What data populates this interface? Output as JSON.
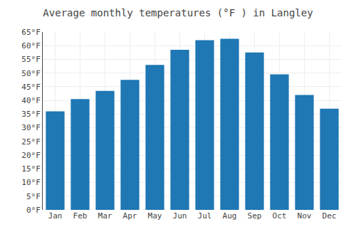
{
  "chart_data": {
    "type": "bar",
    "title": "Average monthly temperatures (°F ) in Langley",
    "categories": [
      "Jan",
      "Feb",
      "Mar",
      "Apr",
      "May",
      "Jun",
      "Jul",
      "Aug",
      "Sep",
      "Oct",
      "Nov",
      "Dec"
    ],
    "values": [
      36,
      40.5,
      43.5,
      47.5,
      53,
      58.5,
      62,
      62.5,
      57.5,
      49.5,
      42,
      37
    ],
    "ylim": [
      0,
      65
    ],
    "yticks": [
      {
        "value": 0,
        "label": "0°F"
      },
      {
        "value": 5,
        "label": "5°F"
      },
      {
        "value": 10,
        "label": "10°F"
      },
      {
        "value": 15,
        "label": "15°F"
      },
      {
        "value": 20,
        "label": "20°F"
      },
      {
        "value": 25,
        "label": "25°F"
      },
      {
        "value": 30,
        "label": "30°F"
      },
      {
        "value": 35,
        "label": "35°F"
      },
      {
        "value": 40,
        "label": "40°F"
      },
      {
        "value": 45,
        "label": "45°F"
      },
      {
        "value": 50,
        "label": "50°F"
      },
      {
        "value": 55,
        "label": "55°F"
      },
      {
        "value": 60,
        "label": "60°F"
      },
      {
        "value": 65,
        "label": "65°F"
      }
    ],
    "grid": true
  }
}
